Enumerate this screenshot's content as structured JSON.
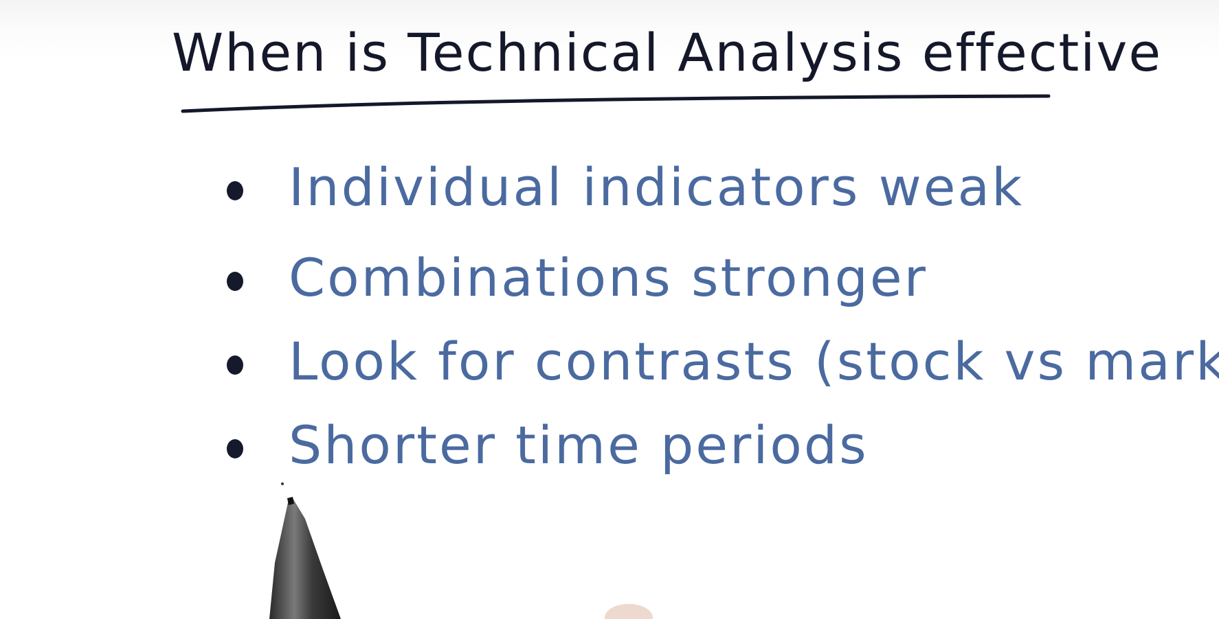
{
  "title": "When is Technical Analysis effective",
  "bullets": [
    "Individual indicators weak",
    "Combinations stronger",
    "Look for contrasts (stock vs market)",
    "Shorter time periods"
  ],
  "colors": {
    "title_ink": "#14182a",
    "bullet_ink": "#4a6aa0",
    "bullet_dot": "#141a2c",
    "background": "#ffffff"
  },
  "icons": {
    "pen": "pen-icon"
  }
}
